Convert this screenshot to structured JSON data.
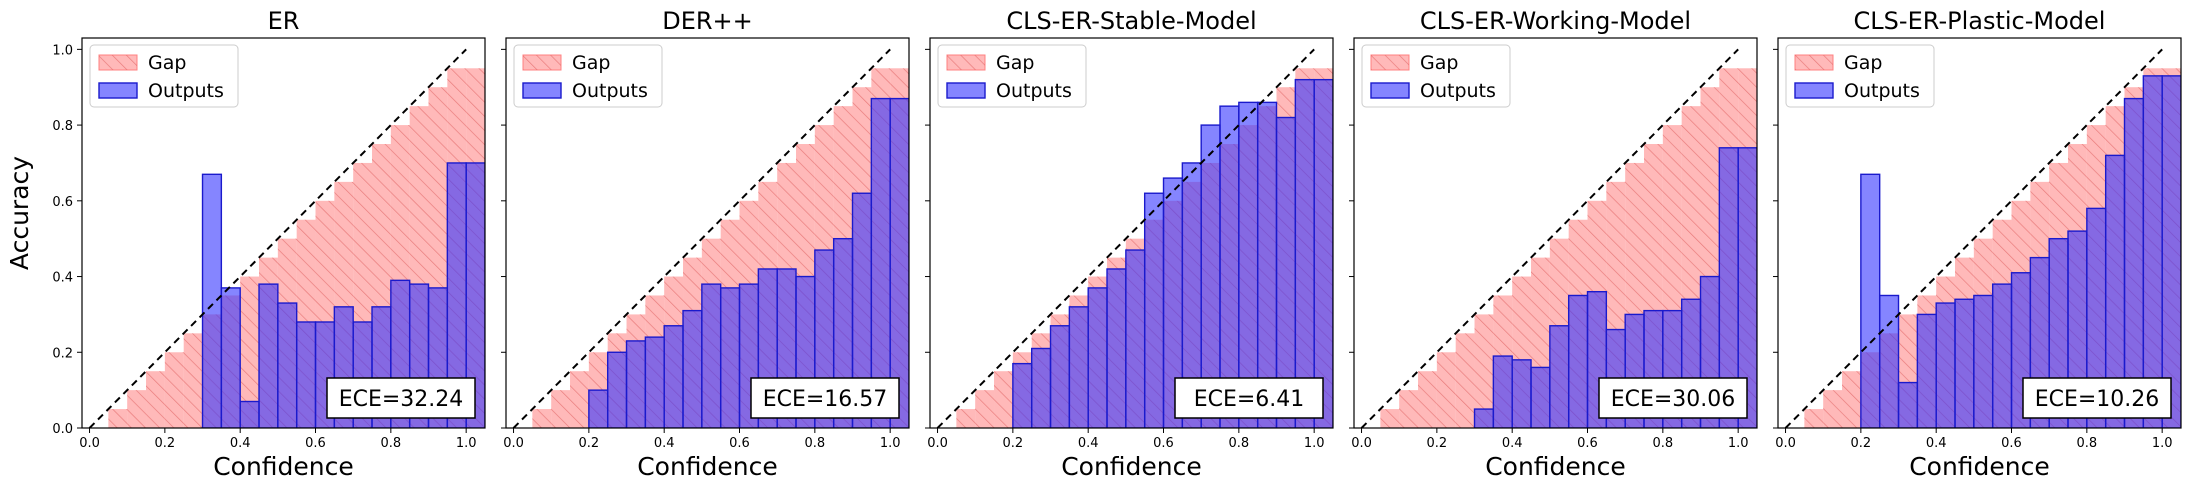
{
  "figure": {
    "ylabel": "Accuracy"
  },
  "chart_data": [
    {
      "type": "bar",
      "title": "ER",
      "xlabel": "Confidence",
      "ylabel": "Accuracy",
      "xlim": [
        -0.02,
        1.05
      ],
      "ylim": [
        0,
        1.03
      ],
      "bin_width": 0.05,
      "bin_centers": [
        0.075,
        0.125,
        0.175,
        0.225,
        0.275,
        0.325,
        0.375,
        0.425,
        0.475,
        0.525,
        0.575,
        0.625,
        0.675,
        0.725,
        0.775,
        0.825,
        0.875,
        0.925,
        0.975,
        1.025
      ],
      "gap_values": [
        0.05,
        0.1,
        0.15,
        0.2,
        0.25,
        0.3,
        0.35,
        0.4,
        0.45,
        0.5,
        0.55,
        0.6,
        0.65,
        0.7,
        0.75,
        0.8,
        0.85,
        0.9,
        0.95,
        0.95
      ],
      "outputs_values": [
        0,
        0,
        0,
        0,
        0,
        0.67,
        0.37,
        0.07,
        0.38,
        0.33,
        0.28,
        0.28,
        0.32,
        0.28,
        0.32,
        0.39,
        0.38,
        0.37,
        0.7,
        0.7
      ],
      "ece_label": "ECE=32.24",
      "legend": [
        "Gap",
        "Outputs"
      ],
      "x_ticks": [
        "0.0",
        "0.2",
        "0.4",
        "0.6",
        "0.8",
        "1.0"
      ],
      "y_ticks": [
        "0.0",
        "0.2",
        "0.4",
        "0.6",
        "0.8",
        "1.0"
      ]
    },
    {
      "type": "bar",
      "title": "DER++",
      "xlabel": "Confidence",
      "ylabel": "",
      "xlim": [
        -0.02,
        1.05
      ],
      "ylim": [
        0,
        1.03
      ],
      "bin_width": 0.05,
      "bin_centers": [
        0.075,
        0.125,
        0.175,
        0.225,
        0.275,
        0.325,
        0.375,
        0.425,
        0.475,
        0.525,
        0.575,
        0.625,
        0.675,
        0.725,
        0.775,
        0.825,
        0.875,
        0.925,
        0.975,
        1.025
      ],
      "gap_values": [
        0.05,
        0.1,
        0.15,
        0.2,
        0.25,
        0.3,
        0.35,
        0.4,
        0.45,
        0.5,
        0.55,
        0.6,
        0.65,
        0.7,
        0.75,
        0.8,
        0.85,
        0.9,
        0.95,
        0.95
      ],
      "outputs_values": [
        0,
        0,
        0,
        0.1,
        0.2,
        0.23,
        0.24,
        0.27,
        0.31,
        0.38,
        0.37,
        0.38,
        0.42,
        0.42,
        0.4,
        0.47,
        0.5,
        0.62,
        0.87,
        0.87
      ],
      "ece_label": "ECE=16.57",
      "legend": [
        "Gap",
        "Outputs"
      ],
      "x_ticks": [
        "0.0",
        "0.2",
        "0.4",
        "0.6",
        "0.8",
        "1.0"
      ],
      "y_ticks": [
        "0.0",
        "0.2",
        "0.4",
        "0.6",
        "0.8",
        "1.0"
      ]
    },
    {
      "type": "bar",
      "title": "CLS-ER-Stable-Model",
      "xlabel": "Confidence",
      "ylabel": "",
      "xlim": [
        -0.02,
        1.05
      ],
      "ylim": [
        0,
        1.03
      ],
      "bin_width": 0.05,
      "bin_centers": [
        0.075,
        0.125,
        0.175,
        0.225,
        0.275,
        0.325,
        0.375,
        0.425,
        0.475,
        0.525,
        0.575,
        0.625,
        0.675,
        0.725,
        0.775,
        0.825,
        0.875,
        0.925,
        0.975,
        1.025
      ],
      "gap_values": [
        0.05,
        0.1,
        0.15,
        0.2,
        0.25,
        0.3,
        0.35,
        0.4,
        0.45,
        0.5,
        0.55,
        0.6,
        0.65,
        0.7,
        0.75,
        0.8,
        0.85,
        0.9,
        0.95,
        0.95
      ],
      "outputs_values": [
        0,
        0,
        0,
        0.17,
        0.21,
        0.27,
        0.32,
        0.37,
        0.42,
        0.47,
        0.62,
        0.66,
        0.7,
        0.8,
        0.85,
        0.86,
        0.86,
        0.82,
        0.92,
        0.92
      ],
      "ece_label": "ECE=6.41",
      "legend": [
        "Gap",
        "Outputs"
      ],
      "x_ticks": [
        "0.0",
        "0.2",
        "0.4",
        "0.6",
        "0.8",
        "1.0"
      ],
      "y_ticks": [
        "0.0",
        "0.2",
        "0.4",
        "0.6",
        "0.8",
        "1.0"
      ]
    },
    {
      "type": "bar",
      "title": "CLS-ER-Working-Model",
      "xlabel": "Confidence",
      "ylabel": "",
      "xlim": [
        -0.02,
        1.05
      ],
      "ylim": [
        0,
        1.03
      ],
      "bin_width": 0.05,
      "bin_centers": [
        0.075,
        0.125,
        0.175,
        0.225,
        0.275,
        0.325,
        0.375,
        0.425,
        0.475,
        0.525,
        0.575,
        0.625,
        0.675,
        0.725,
        0.775,
        0.825,
        0.875,
        0.925,
        0.975,
        1.025
      ],
      "gap_values": [
        0.05,
        0.1,
        0.15,
        0.2,
        0.25,
        0.3,
        0.35,
        0.4,
        0.45,
        0.5,
        0.55,
        0.6,
        0.65,
        0.7,
        0.75,
        0.8,
        0.85,
        0.9,
        0.95,
        0.95
      ],
      "outputs_values": [
        0,
        0,
        0,
        0,
        0,
        0.05,
        0.19,
        0.18,
        0.16,
        0.27,
        0.35,
        0.36,
        0.26,
        0.3,
        0.31,
        0.31,
        0.34,
        0.4,
        0.74,
        0.74
      ],
      "ece_label": "ECE=30.06",
      "legend": [
        "Gap",
        "Outputs"
      ],
      "x_ticks": [
        "0.0",
        "0.2",
        "0.4",
        "0.6",
        "0.8",
        "1.0"
      ],
      "y_ticks": [
        "0.0",
        "0.2",
        "0.4",
        "0.6",
        "0.8",
        "1.0"
      ]
    },
    {
      "type": "bar",
      "title": "CLS-ER-Plastic-Model",
      "xlabel": "Confidence",
      "ylabel": "",
      "xlim": [
        -0.02,
        1.05
      ],
      "ylim": [
        0,
        1.03
      ],
      "bin_width": 0.05,
      "bin_centers": [
        0.075,
        0.125,
        0.175,
        0.225,
        0.275,
        0.325,
        0.375,
        0.425,
        0.475,
        0.525,
        0.575,
        0.625,
        0.675,
        0.725,
        0.775,
        0.825,
        0.875,
        0.925,
        0.975,
        1.025
      ],
      "gap_values": [
        0.05,
        0.1,
        0.15,
        0.2,
        0.25,
        0.3,
        0.35,
        0.4,
        0.45,
        0.5,
        0.55,
        0.6,
        0.65,
        0.7,
        0.75,
        0.8,
        0.85,
        0.9,
        0.95,
        0.95
      ],
      "outputs_values": [
        0,
        0,
        0,
        0.67,
        0.35,
        0.12,
        0.3,
        0.33,
        0.34,
        0.35,
        0.38,
        0.41,
        0.45,
        0.5,
        0.52,
        0.58,
        0.72,
        0.87,
        0.93,
        0.93
      ],
      "ece_label": "ECE=10.26",
      "legend": [
        "Gap",
        "Outputs"
      ],
      "x_ticks": [
        "0.0",
        "0.2",
        "0.4",
        "0.6",
        "0.8",
        "1.0"
      ],
      "y_ticks": [
        "0.0",
        "0.2",
        "0.4",
        "0.6",
        "0.8",
        "1.0"
      ]
    }
  ],
  "colors": {
    "gap_fill": "#ff8080",
    "gap_hatch": "#e05050",
    "outputs_fill": "#3333ff",
    "outputs_edge": "#1a1acc",
    "diagonal": "#000000",
    "axis": "#000000"
  }
}
